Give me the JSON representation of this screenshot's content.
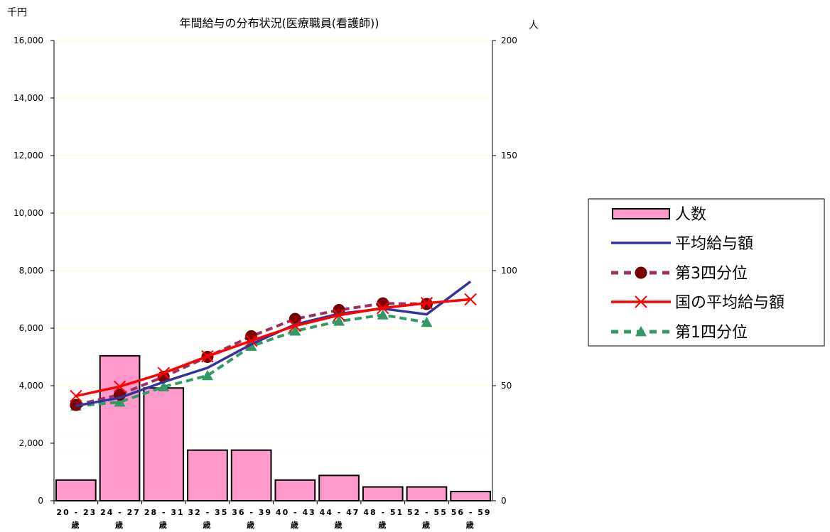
{
  "chart_data": {
    "type": "bar",
    "title": "年間給与の分布状況(医療職員(看護師))",
    "ylabel_left": "千円",
    "ylabel_right": "人",
    "ylim_left": [
      0,
      16000
    ],
    "ylim_right": [
      0,
      200
    ],
    "yticks_left": [
      "0",
      "2,000",
      "4,000",
      "6,000",
      "8,000",
      "10,000",
      "12,000",
      "14,000",
      "16,000"
    ],
    "yticks_right": [
      "0",
      "50",
      "100",
      "150",
      "200"
    ],
    "categories": [
      {
        "range": "20 - 23",
        "unit": "歳"
      },
      {
        "range": "24 - 27",
        "unit": "歳"
      },
      {
        "range": "28 - 31",
        "unit": "歳"
      },
      {
        "range": "32 - 35",
        "unit": "歳"
      },
      {
        "range": "36 - 39",
        "unit": "歳"
      },
      {
        "range": "40 - 43",
        "unit": "歳"
      },
      {
        "range": "44 - 47",
        "unit": "歳"
      },
      {
        "range": "48 - 51",
        "unit": "歳"
      },
      {
        "range": "52 - 55",
        "unit": "歳"
      },
      {
        "range": "56 - 59",
        "unit": "歳"
      }
    ],
    "grid": true,
    "legend_position": "right",
    "series": [
      {
        "name": "人数",
        "type": "bar",
        "axis": "right",
        "color": "#FF99CC",
        "values": [
          9,
          63,
          49,
          22,
          22,
          9,
          11,
          6,
          6,
          4
        ]
      },
      {
        "name": "平均給与額",
        "type": "line",
        "axis": "left",
        "color": "#333399",
        "style": "solid",
        "values": [
          3300,
          3580,
          4130,
          4620,
          5440,
          6130,
          6500,
          6680,
          6480,
          7620
        ]
      },
      {
        "name": "第3四分位",
        "type": "line",
        "axis": "left",
        "color": "#993366",
        "style": "dashed",
        "marker": "circle",
        "marker_color": "#800000",
        "values": [
          3330,
          3690,
          4310,
          5000,
          5720,
          6320,
          6630,
          6860,
          6840,
          null
        ]
      },
      {
        "name": "国の平均給与額",
        "type": "line",
        "axis": "left",
        "color": "#FF0000",
        "style": "solid",
        "marker": "x",
        "values": [
          3640,
          3970,
          4440,
          5020,
          5560,
          6080,
          6450,
          6700,
          6870,
          7000
        ]
      },
      {
        "name": "第1四分位",
        "type": "line",
        "axis": "left",
        "color": "#339966",
        "style": "dashed",
        "marker": "triangle",
        "values": [
          3290,
          3430,
          3960,
          4350,
          5370,
          5900,
          6240,
          6460,
          6200,
          null
        ]
      }
    ]
  }
}
